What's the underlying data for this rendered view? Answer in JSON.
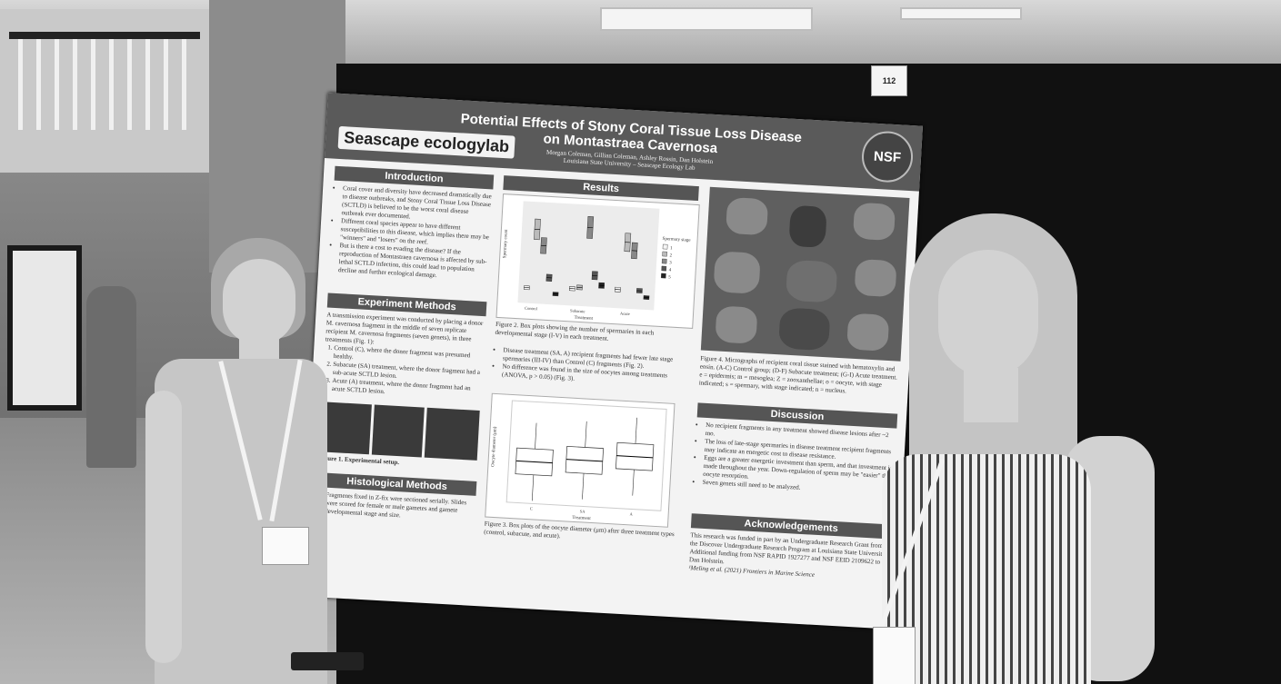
{
  "booth_number": "112",
  "poster": {
    "title_line1": "Potential Effects of Stony Coral Tissue Loss Disease",
    "title_line2": "on Montastraea Cavernosa",
    "authors": "Morgan Coleman, Gillian Coleman, Ashley Rossin, Dan Holstein",
    "affiliation": "Louisiana State University – Seascape Ecology Lab",
    "logo_text": "Seascape ecologylab",
    "nsf_text": "NSF",
    "introduction": {
      "heading": "Introduction",
      "bullets": [
        "Coral cover and diversity have decreased dramatically due to disease outbreaks, and Stony Coral Tissue Loss Disease (SCTLD) is believed to be the worst coral disease outbreak ever documented.",
        "Different coral species appear to have different susceptibilities to this disease, which implies there may be \"winners\" and \"losers\" on the reef.",
        "But is there a cost to evading the disease? If the reproduction of Montastraea cavernosa is affected by sub-lethal SCTLD infection, this could lead to population decline and further ecological damage."
      ]
    },
    "experiment_methods": {
      "heading": "Experiment Methods",
      "intro": "A transmission experiment was conducted by placing a donor M. cavernosa fragment in the middle of seven replicate recipient M. cavernosa fragments (seven genets), in three treatments (Fig. 1):",
      "items": [
        "Control (C), where the donor fragment was presumed healthy.",
        "Subacute (SA) treatment, where the donor fragment had a sub-acute SCTLD lesion.",
        "Acute (A) treatment, where the donor fragment had an acute SCTLD lesion."
      ],
      "figure_caption": "Figure 1. Experimental setup."
    },
    "histological_methods": {
      "heading": "Histological Methods",
      "bullets": [
        "Fragments fixed in Z-fix were sectioned serially. Slides were scored for female or male gametes and gamete developmental stage and size."
      ]
    },
    "results": {
      "heading": "Results",
      "fig2_caption": "Figure 2. Box plots showing the number of spermaries in each developmental stage (I-V) in each treatment.",
      "fig2_legend_title": "Spermary stage",
      "fig2_legend": [
        "1",
        "2",
        "3",
        "4",
        "5"
      ],
      "fig2_ylabel": "Spermary count",
      "fig2_xlabel": "Treatment",
      "fig2_categories": [
        "Control",
        "Subacute",
        "Acute"
      ],
      "bullets": [
        "Disease treatment (SA, A) recipient fragments had fewer late stage spermaries (III-IV) than Control (C) fragments (Fig. 2).",
        "No difference was found in the size of oocytes among treatments (ANOVA, p > 0.05) (Fig. 3)."
      ],
      "fig3_caption": "Figure 3. Box plots of the oocyte diameter (μm) after three treatment types (control, subacute, and acute).",
      "fig3_ylabel": "Oocyte diameter (μm)",
      "fig3_xlabel": "Treatment",
      "fig3_categories": [
        "C",
        "SA",
        "A"
      ]
    },
    "figure4_caption": "Figure 4. Micrographs of recipient coral tissue stained with hematoxylin and eosin. (A-C) Control group; (D-F) Subacute treatment; (G-I) Acute treatment. e = epidermis; m = mesoglea; Z = zooxanthellae; o = oocyte, with stage indicated; s = spermary, with stage indicated; n = nucleus.",
    "discussion": {
      "heading": "Discussion",
      "bullets": [
        "No recipient fragments in any treatment showed disease lesions after ~2 mo.",
        "The loss of late-stage spermaries in disease treatment recipient fragments may indicate an energetic cost to disease resistance.",
        "Eggs are a greater energetic investment than sperm, and that investment is made throughout the year. Down-regulation of sperm may be \"easier\" than oocyte resorption.",
        "Seven genets still need to be analyzed."
      ]
    },
    "acknowledgements": {
      "heading": "Acknowledgements",
      "text": "This research was funded in part by an Undergraduate Research Grant from the Discover Undergraduate Research Program at Louisiana State University. Additional funding from NSF RAPID 1927277 and NSF EEID 2109622 to Dan Holstein.",
      "reference": "¹Meling et al. (2021) Frontiers in Marine Science"
    }
  },
  "chart_data": [
    {
      "type": "box",
      "title": "",
      "xlabel": "Treatment",
      "ylabel": "Spermary count",
      "categories": [
        "Control",
        "Subacute",
        "Acute"
      ],
      "series": [
        {
          "name": "1",
          "median": [
            0.8,
            0.9,
            1.0
          ]
        },
        {
          "name": "2",
          "median": [
            4.5,
            1.0,
            4.0
          ]
        },
        {
          "name": "3",
          "median": [
            3.5,
            4.8,
            3.5
          ]
        },
        {
          "name": "4",
          "median": [
            1.5,
            1.8,
            1.0
          ]
        },
        {
          "name": "5",
          "median": [
            0.5,
            1.2,
            0.6
          ]
        }
      ]
    },
    {
      "type": "box",
      "title": "",
      "xlabel": "Treatment",
      "ylabel": "Oocyte diameter (μm)",
      "categories": [
        "C",
        "SA",
        "A"
      ],
      "median": [
        190,
        200,
        215
      ]
    }
  ]
}
